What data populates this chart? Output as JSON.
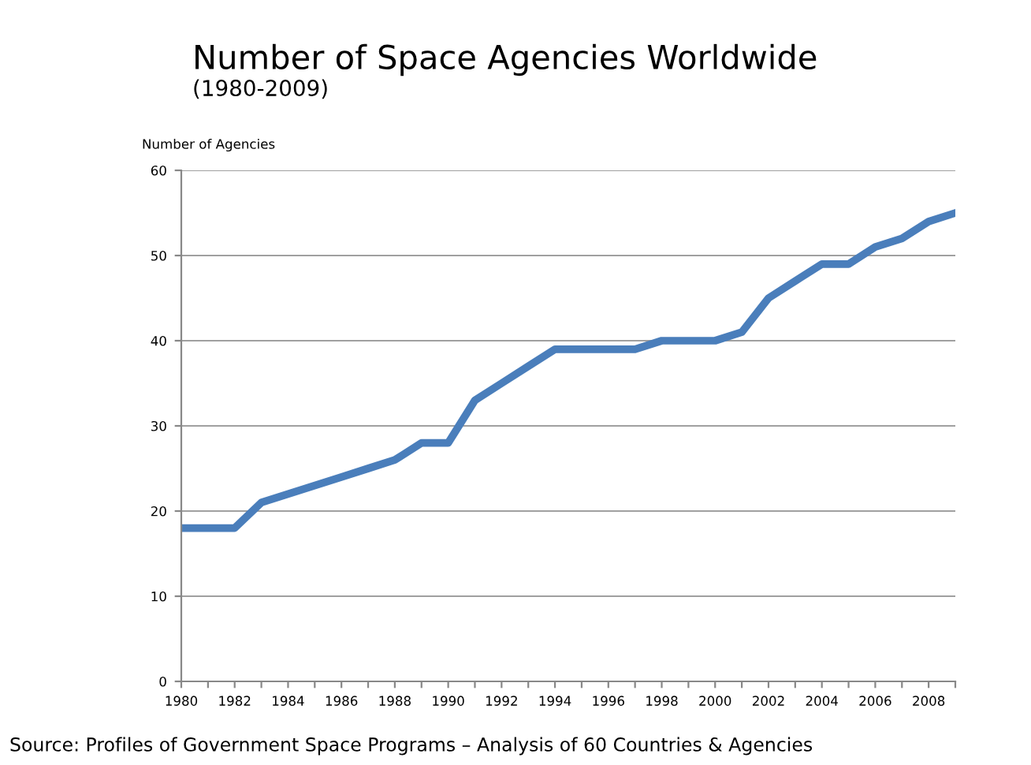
{
  "chart_data": {
    "type": "line",
    "title": "Number of Space Agencies Worldwide",
    "subtitle": "(1980-2009)",
    "ylabel": "Number of Agencies",
    "categories": [
      "1980",
      null,
      "1982",
      null,
      "1984",
      null,
      "1986",
      null,
      "1988",
      null,
      "1990",
      null,
      "1992",
      null,
      "1994",
      null,
      "1996",
      null,
      "1998",
      null,
      "2000",
      null,
      "2002",
      null,
      "2004",
      null,
      "2006",
      null,
      "2008",
      null
    ],
    "series": [
      {
        "color": "#4a7ebb",
        "values": [
          18,
          18,
          18,
          21,
          22,
          23,
          24,
          25,
          26,
          28,
          28,
          33,
          35,
          37,
          39,
          39,
          39,
          39,
          40,
          40,
          40,
          41,
          45,
          47,
          49,
          49,
          51,
          52,
          54,
          55
        ]
      }
    ],
    "ylim": [
      0,
      60
    ],
    "yticks": [
      0,
      10,
      20,
      30,
      40,
      50,
      60
    ],
    "grid": "y",
    "legend": false,
    "marker": "none",
    "line_style": "solid",
    "annotations": [
      "Source: Profiles of Government Space Programs – Analysis of 60 Countries & Agencies"
    ]
  }
}
